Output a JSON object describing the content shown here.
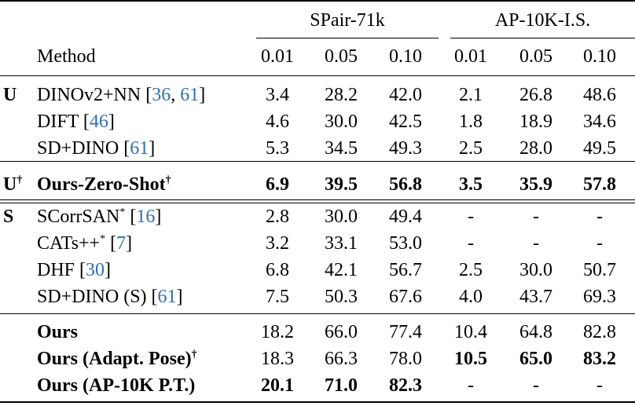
{
  "groups": [
    "SPair-71k",
    "AP-10K-I.S."
  ],
  "method_header": "Method",
  "thresholds": [
    "0.01",
    "0.05",
    "0.10",
    "0.01",
    "0.05",
    "0.10"
  ],
  "sections": {
    "U": "U",
    "Udag": "U",
    "dagger": "†",
    "S": "S"
  },
  "rows": [
    {
      "name": "DINOv2+NN ",
      "cites": [
        "36",
        "61"
      ],
      "values": [
        "3.4",
        "28.2",
        "42.0",
        "2.1",
        "26.8",
        "48.6"
      ]
    },
    {
      "name": "DIFT ",
      "cites": [
        "46"
      ],
      "values": [
        "4.6",
        "30.0",
        "42.5",
        "1.8",
        "18.9",
        "34.6"
      ]
    },
    {
      "name": "SD+DINO ",
      "cites": [
        "61"
      ],
      "values": [
        "5.3",
        "34.5",
        "49.3",
        "2.5",
        "28.0",
        "49.5"
      ]
    },
    {
      "name": "Ours-Zero-Shot",
      "sup": "†",
      "values": [
        "6.9",
        "39.5",
        "56.8",
        "3.5",
        "35.9",
        "57.8"
      ]
    },
    {
      "name": "SCorrSAN",
      "sup": "*",
      "cites": [
        "16"
      ],
      "values": [
        "2.8",
        "30.0",
        "49.4",
        "-",
        "-",
        "-"
      ]
    },
    {
      "name": "CATs++",
      "sup": "*",
      "cites": [
        "7"
      ],
      "values": [
        "3.2",
        "33.1",
        "53.0",
        "-",
        "-",
        "-"
      ]
    },
    {
      "name": "DHF ",
      "cites": [
        "30"
      ],
      "values": [
        "6.8",
        "42.1",
        "56.7",
        "2.5",
        "30.0",
        "50.7"
      ]
    },
    {
      "name": "SD+DINO (S) ",
      "cites": [
        "61"
      ],
      "values": [
        "7.5",
        "50.3",
        "67.6",
        "4.0",
        "43.7",
        "69.3"
      ]
    },
    {
      "name": "Ours",
      "values": [
        "18.2",
        "66.0",
        "77.4",
        "10.4",
        "64.8",
        "82.8"
      ]
    },
    {
      "name": "Ours (Adapt. Pose)",
      "sup": "†",
      "values": [
        "18.3",
        "66.3",
        "78.0",
        "10.5",
        "65.0",
        "83.2"
      ]
    },
    {
      "name": "Ours (AP-10K P.T.)",
      "values": [
        "20.1",
        "71.0",
        "82.3",
        "-",
        "-",
        "-"
      ]
    }
  ]
}
